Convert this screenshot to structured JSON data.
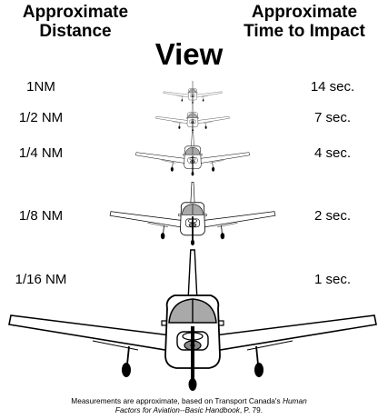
{
  "header": {
    "distance_line1": "Approximate",
    "distance_line2": "Distance",
    "time_line1": "Approximate",
    "time_line2": "Time to Impact"
  },
  "title": "View",
  "rows": [
    {
      "distance": "1NM",
      "time": "14 sec."
    },
    {
      "distance": "1/2 NM",
      "time": "7 sec."
    },
    {
      "distance": "1/4 NM",
      "time": "4 sec."
    },
    {
      "distance": "1/8 NM",
      "time": "2 sec."
    },
    {
      "distance": "1/16 NM",
      "time": "1 sec."
    }
  ],
  "footer": {
    "line1_prefix": "Measurements are approximate, based on Transport Canada's ",
    "line1_italic": "Human",
    "line2_italic": "Factors for Aviation--Basic Handbook",
    "line2_suffix": ", P. 79."
  }
}
